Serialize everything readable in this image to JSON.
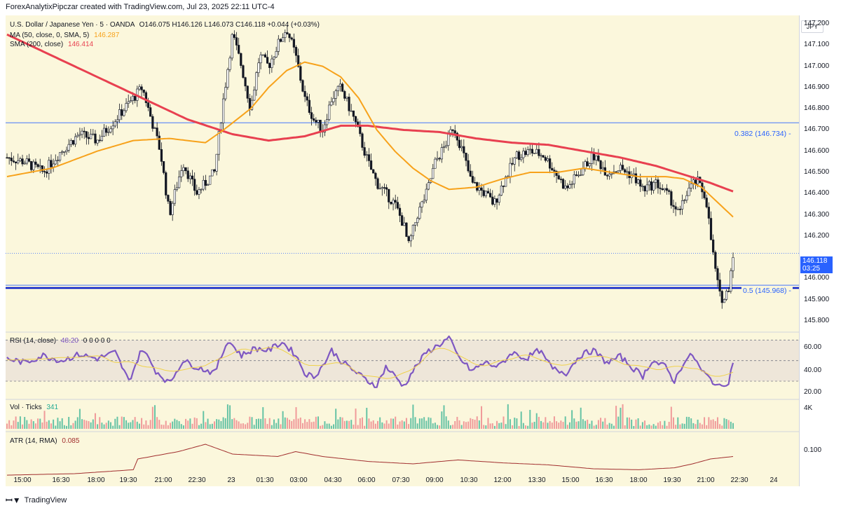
{
  "header": {
    "credit": "ForexAnalytixPipczar created with TradingView.com, Jul 23, 2025 22:11 UTC-4"
  },
  "legend": {
    "symbol": "U.S. Dollar / Japanese Yen · 5 · OANDA",
    "ohlc": "O146.075 H146.126 L146.073 C146.118 +0.044 (+0.03%)",
    "ma_label": "MA (50, close, 0, SMA, 5)",
    "ma_value": "146.287",
    "sma_label": "SMA (200, close)",
    "sma_value": "146.414",
    "rsi_label": "RSI (14, close)",
    "rsi_value": "48.20",
    "rsi_zeros": "0 0 0 0 0",
    "vol_label": "Vol · Ticks",
    "vol_value": "341",
    "atr_label": "ATR (14, RMA)",
    "atr_value": "0.085"
  },
  "currency_button": "JPY",
  "current_price": {
    "price": "146.118",
    "countdown": "03:25"
  },
  "fib_levels": [
    {
      "label": "0.382 (146.734)",
      "price": 146.734
    },
    {
      "label": "0.5 (145.968)",
      "price": 145.968
    }
  ],
  "colors": {
    "background": "#fbf7dc",
    "candle": "#131722",
    "ma50": "#f7a21b",
    "sma200": "#e84050",
    "fib_line": "#2962ff",
    "support_line": "#0c21c8",
    "rsi": "#7e57c2",
    "rsi_ma": "#f0d24a",
    "vol_up": "#66c3a5",
    "vol_down": "#f09a9a",
    "atr": "#a12e2e"
  },
  "price_axis_labels": [
    "147.200",
    "147.100",
    "147.000",
    "146.900",
    "146.800",
    "146.700",
    "146.600",
    "146.500",
    "146.400",
    "146.300",
    "146.200",
    "146.000",
    "145.900",
    "145.800"
  ],
  "rsi_axis_labels": [
    "60.00",
    "40.00",
    "20.00"
  ],
  "vol_axis_label": "4K",
  "atr_axis_label": "0.100",
  "time_axis_labels": [
    "15:00",
    "16:30",
    "18:00",
    "19:30",
    "21:00",
    "22:30",
    "23",
    "01:30",
    "03:00",
    "04:30",
    "06:00",
    "07:30",
    "09:00",
    "10:30",
    "12:00",
    "13:30",
    "15:00",
    "16:30",
    "18:00",
    "19:30",
    "21:00",
    "22:30",
    "24"
  ],
  "footer": {
    "brand": "TradingView"
  },
  "chart_data": {
    "type": "line",
    "title": "U.S. Dollar / Japanese Yen · 5 · OANDA",
    "price_ylim": [
      145.76,
      147.24
    ],
    "price_path": [
      {
        "t": 0,
        "p": 146.57
      },
      {
        "t": 4,
        "p": 146.55
      },
      {
        "t": 8,
        "p": 146.5
      },
      {
        "t": 12,
        "p": 146.6
      },
      {
        "t": 16,
        "p": 146.68
      },
      {
        "t": 20,
        "p": 146.65
      },
      {
        "t": 24,
        "p": 146.75
      },
      {
        "t": 28,
        "p": 146.85
      },
      {
        "t": 30,
        "p": 146.9
      },
      {
        "t": 34,
        "p": 146.6
      },
      {
        "t": 36,
        "p": 146.3
      },
      {
        "t": 39,
        "p": 146.55
      },
      {
        "t": 42,
        "p": 146.4
      },
      {
        "t": 46,
        "p": 146.5
      },
      {
        "t": 48,
        "p": 146.85
      },
      {
        "t": 50,
        "p": 147.15
      },
      {
        "t": 52,
        "p": 147.0
      },
      {
        "t": 54,
        "p": 146.8
      },
      {
        "t": 56,
        "p": 147.05
      },
      {
        "t": 58,
        "p": 147.0
      },
      {
        "t": 60,
        "p": 147.1
      },
      {
        "t": 62,
        "p": 147.18
      },
      {
        "t": 64,
        "p": 147.05
      },
      {
        "t": 66,
        "p": 146.85
      },
      {
        "t": 68,
        "p": 146.75
      },
      {
        "t": 70,
        "p": 146.7
      },
      {
        "t": 72,
        "p": 146.85
      },
      {
        "t": 74,
        "p": 146.9
      },
      {
        "t": 77,
        "p": 146.75
      },
      {
        "t": 80,
        "p": 146.55
      },
      {
        "t": 82,
        "p": 146.45
      },
      {
        "t": 84,
        "p": 146.4
      },
      {
        "t": 86,
        "p": 146.35
      },
      {
        "t": 88,
        "p": 146.25
      },
      {
        "t": 89,
        "p": 146.15
      },
      {
        "t": 91,
        "p": 146.3
      },
      {
        "t": 93,
        "p": 146.4
      },
      {
        "t": 95,
        "p": 146.55
      },
      {
        "t": 97,
        "p": 146.62
      },
      {
        "t": 99,
        "p": 146.72
      },
      {
        "t": 101,
        "p": 146.6
      },
      {
        "t": 103,
        "p": 146.45
      },
      {
        "t": 106,
        "p": 146.4
      },
      {
        "t": 108,
        "p": 146.35
      },
      {
        "t": 110,
        "p": 146.45
      },
      {
        "t": 113,
        "p": 146.58
      },
      {
        "t": 116,
        "p": 146.6
      },
      {
        "t": 119,
        "p": 146.58
      },
      {
        "t": 121,
        "p": 146.52
      },
      {
        "t": 124,
        "p": 146.42
      },
      {
        "t": 127,
        "p": 146.5
      },
      {
        "t": 130,
        "p": 146.58
      },
      {
        "t": 133,
        "p": 146.5
      },
      {
        "t": 136,
        "p": 146.52
      },
      {
        "t": 139,
        "p": 146.48
      },
      {
        "t": 141,
        "p": 146.42
      },
      {
        "t": 144,
        "p": 146.45
      },
      {
        "t": 147,
        "p": 146.38
      },
      {
        "t": 149,
        "p": 146.3
      },
      {
        "t": 151,
        "p": 146.42
      },
      {
        "t": 153,
        "p": 146.46
      },
      {
        "t": 155,
        "p": 146.38
      },
      {
        "t": 156,
        "p": 146.2
      },
      {
        "t": 157,
        "p": 146.05
      },
      {
        "t": 158,
        "p": 145.92
      },
      {
        "t": 159,
        "p": 145.9
      },
      {
        "t": 160,
        "p": 145.96
      },
      {
        "t": 161,
        "p": 146.12
      }
    ],
    "ma50_path": [
      {
        "t": 0,
        "p": 146.48
      },
      {
        "t": 10,
        "p": 146.52
      },
      {
        "t": 20,
        "p": 146.6
      },
      {
        "t": 28,
        "p": 146.65
      },
      {
        "t": 36,
        "p": 146.66
      },
      {
        "t": 44,
        "p": 146.64
      },
      {
        "t": 48,
        "p": 146.7
      },
      {
        "t": 54,
        "p": 146.8
      },
      {
        "t": 58,
        "p": 146.9
      },
      {
        "t": 62,
        "p": 146.98
      },
      {
        "t": 66,
        "p": 147.02
      },
      {
        "t": 70,
        "p": 147.0
      },
      {
        "t": 74,
        "p": 146.95
      },
      {
        "t": 78,
        "p": 146.85
      },
      {
        "t": 82,
        "p": 146.7
      },
      {
        "t": 86,
        "p": 146.6
      },
      {
        "t": 90,
        "p": 146.52
      },
      {
        "t": 94,
        "p": 146.46
      },
      {
        "t": 98,
        "p": 146.42
      },
      {
        "t": 104,
        "p": 146.43
      },
      {
        "t": 110,
        "p": 146.47
      },
      {
        "t": 116,
        "p": 146.5
      },
      {
        "t": 122,
        "p": 146.5
      },
      {
        "t": 128,
        "p": 146.52
      },
      {
        "t": 134,
        "p": 146.5
      },
      {
        "t": 140,
        "p": 146.48
      },
      {
        "t": 146,
        "p": 146.48
      },
      {
        "t": 150,
        "p": 146.47
      },
      {
        "t": 154,
        "p": 146.43
      },
      {
        "t": 158,
        "p": 146.35
      },
      {
        "t": 161,
        "p": 146.29
      }
    ],
    "sma200_path": [
      {
        "t": 0,
        "p": 147.15
      },
      {
        "t": 10,
        "p": 147.05
      },
      {
        "t": 20,
        "p": 146.95
      },
      {
        "t": 30,
        "p": 146.85
      },
      {
        "t": 40,
        "p": 146.75
      },
      {
        "t": 50,
        "p": 146.68
      },
      {
        "t": 58,
        "p": 146.65
      },
      {
        "t": 66,
        "p": 146.67
      },
      {
        "t": 74,
        "p": 146.72
      },
      {
        "t": 80,
        "p": 146.72
      },
      {
        "t": 88,
        "p": 146.7
      },
      {
        "t": 96,
        "p": 146.69
      },
      {
        "t": 104,
        "p": 146.66
      },
      {
        "t": 112,
        "p": 146.64
      },
      {
        "t": 120,
        "p": 146.63
      },
      {
        "t": 128,
        "p": 146.6
      },
      {
        "t": 136,
        "p": 146.57
      },
      {
        "t": 144,
        "p": 146.53
      },
      {
        "t": 150,
        "p": 146.49
      },
      {
        "t": 156,
        "p": 146.45
      },
      {
        "t": 161,
        "p": 146.41
      }
    ],
    "rsi_ylim": [
      15,
      75
    ],
    "rsi_path": [
      {
        "t": 0,
        "p": 52
      },
      {
        "t": 4,
        "p": 48
      },
      {
        "t": 8,
        "p": 55
      },
      {
        "t": 12,
        "p": 50
      },
      {
        "t": 16,
        "p": 56
      },
      {
        "t": 20,
        "p": 52
      },
      {
        "t": 24,
        "p": 58
      },
      {
        "t": 27,
        "p": 30
      },
      {
        "t": 30,
        "p": 62
      },
      {
        "t": 33,
        "p": 40
      },
      {
        "t": 36,
        "p": 28
      },
      {
        "t": 39,
        "p": 50
      },
      {
        "t": 42,
        "p": 44
      },
      {
        "t": 46,
        "p": 38
      },
      {
        "t": 49,
        "p": 70
      },
      {
        "t": 52,
        "p": 55
      },
      {
        "t": 55,
        "p": 62
      },
      {
        "t": 58,
        "p": 60
      },
      {
        "t": 61,
        "p": 68
      },
      {
        "t": 64,
        "p": 56
      },
      {
        "t": 66,
        "p": 38
      },
      {
        "t": 68,
        "p": 34
      },
      {
        "t": 70,
        "p": 45
      },
      {
        "t": 72,
        "p": 60
      },
      {
        "t": 74,
        "p": 50
      },
      {
        "t": 77,
        "p": 40
      },
      {
        "t": 80,
        "p": 30
      },
      {
        "t": 82,
        "p": 26
      },
      {
        "t": 84,
        "p": 44
      },
      {
        "t": 86,
        "p": 35
      },
      {
        "t": 88,
        "p": 25
      },
      {
        "t": 90,
        "p": 40
      },
      {
        "t": 93,
        "p": 58
      },
      {
        "t": 96,
        "p": 66
      },
      {
        "t": 98,
        "p": 72
      },
      {
        "t": 100,
        "p": 54
      },
      {
        "t": 103,
        "p": 40
      },
      {
        "t": 106,
        "p": 48
      },
      {
        "t": 109,
        "p": 44
      },
      {
        "t": 112,
        "p": 58
      },
      {
        "t": 115,
        "p": 52
      },
      {
        "t": 118,
        "p": 60
      },
      {
        "t": 121,
        "p": 42
      },
      {
        "t": 124,
        "p": 38
      },
      {
        "t": 127,
        "p": 55
      },
      {
        "t": 130,
        "p": 60
      },
      {
        "t": 133,
        "p": 48
      },
      {
        "t": 136,
        "p": 54
      },
      {
        "t": 139,
        "p": 42
      },
      {
        "t": 141,
        "p": 35
      },
      {
        "t": 143,
        "p": 50
      },
      {
        "t": 146,
        "p": 44
      },
      {
        "t": 148,
        "p": 30
      },
      {
        "t": 150,
        "p": 48
      },
      {
        "t": 152,
        "p": 56
      },
      {
        "t": 154,
        "p": 40
      },
      {
        "t": 156,
        "p": 32
      },
      {
        "t": 158,
        "p": 24
      },
      {
        "t": 160,
        "p": 30
      },
      {
        "t": 161,
        "p": 48
      }
    ],
    "rsi_levels": [
      70,
      50,
      30
    ],
    "atr_ylim": [
      0.03,
      0.13
    ],
    "atr_path": [
      {
        "t": 0,
        "p": 0.047
      },
      {
        "t": 15,
        "p": 0.05
      },
      {
        "t": 28,
        "p": 0.058
      },
      {
        "t": 29,
        "p": 0.08
      },
      {
        "t": 38,
        "p": 0.095
      },
      {
        "t": 44,
        "p": 0.11
      },
      {
        "t": 50,
        "p": 0.09
      },
      {
        "t": 60,
        "p": 0.085
      },
      {
        "t": 64,
        "p": 0.095
      },
      {
        "t": 70,
        "p": 0.085
      },
      {
        "t": 80,
        "p": 0.075
      },
      {
        "t": 90,
        "p": 0.07
      },
      {
        "t": 100,
        "p": 0.078
      },
      {
        "t": 110,
        "p": 0.072
      },
      {
        "t": 120,
        "p": 0.068
      },
      {
        "t": 130,
        "p": 0.06
      },
      {
        "t": 140,
        "p": 0.058
      },
      {
        "t": 148,
        "p": 0.062
      },
      {
        "t": 152,
        "p": 0.07
      },
      {
        "t": 156,
        "p": 0.08
      },
      {
        "t": 161,
        "p": 0.085
      }
    ],
    "volume_max": 4000
  }
}
